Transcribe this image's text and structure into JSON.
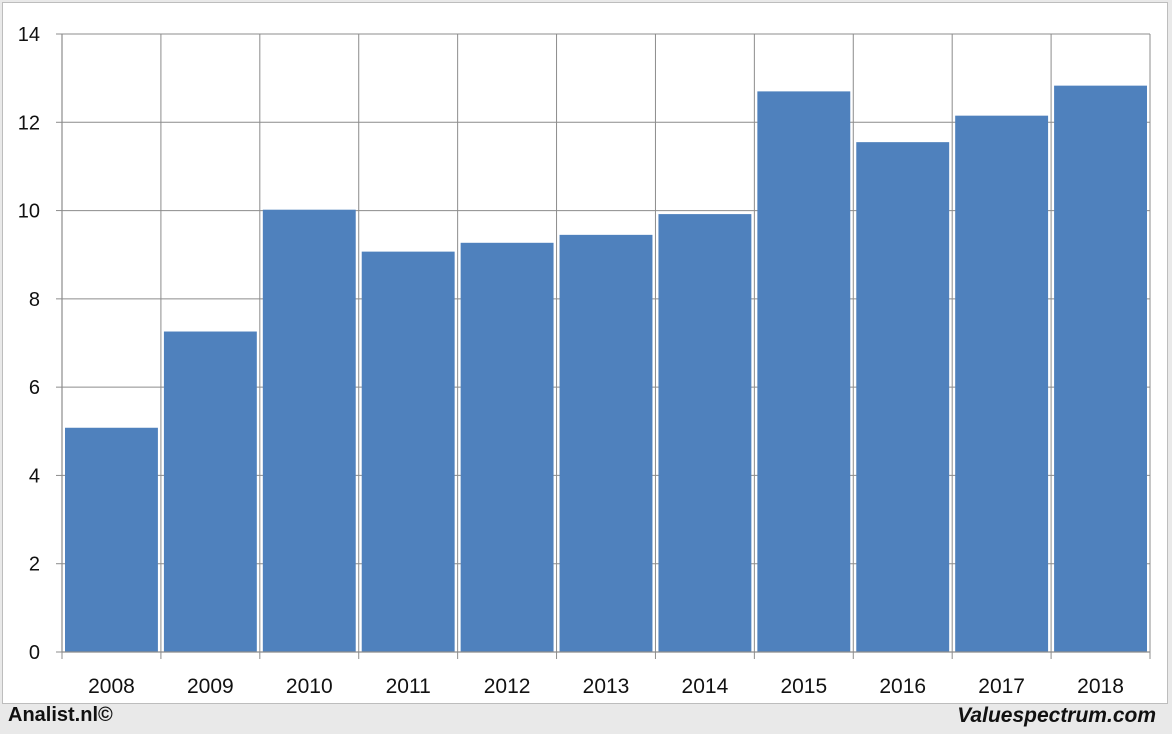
{
  "chart_data": {
    "type": "bar",
    "categories": [
      "2008",
      "2009",
      "2010",
      "2011",
      "2012",
      "2013",
      "2014",
      "2015",
      "2016",
      "2017",
      "2018"
    ],
    "values": [
      5.08,
      7.26,
      10.02,
      9.07,
      9.27,
      9.45,
      9.92,
      12.7,
      11.55,
      12.15,
      12.83
    ],
    "ylim": [
      0,
      14
    ],
    "yticks": [
      0,
      2,
      4,
      6,
      8,
      10,
      12,
      14
    ],
    "grid": true,
    "bar_color": "#4f81bd",
    "grid_color": "#8c8c8c"
  },
  "footer": {
    "left": "Analist.nl©",
    "right": "Valuespectrum.com"
  }
}
